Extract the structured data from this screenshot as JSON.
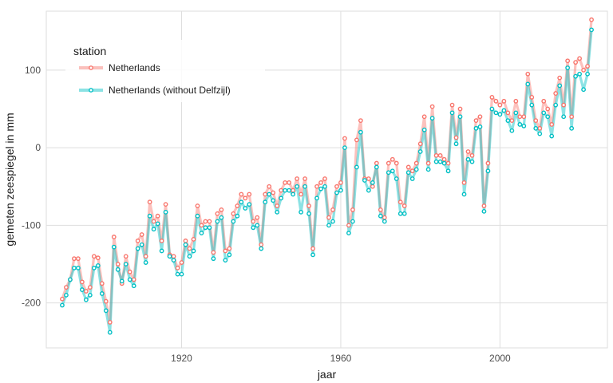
{
  "chart_data": {
    "type": "line",
    "xlabel": "jaar",
    "ylabel": "gemeten zeespiegel in mm",
    "xlim": [
      1886,
      2027
    ],
    "ylim": [
      -258,
      176
    ],
    "x_ticks": [
      1920,
      1960,
      2000
    ],
    "y_ticks": [
      -200,
      -100,
      0,
      100
    ],
    "y_tick_labels": [
      "-200",
      "-100",
      "0",
      "100"
    ],
    "grid": true,
    "legend": {
      "title": "station",
      "placement": "top-left",
      "entries": [
        "Netherlands",
        "Netherlands (without Delfzijl)"
      ]
    },
    "colors": {
      "series_1": "#F8766D",
      "series_2": "#00BFC4",
      "grid": "#DEDEDE",
      "panel_border": "#DEDEDE"
    },
    "x": [
      1890,
      1891,
      1892,
      1893,
      1894,
      1895,
      1896,
      1897,
      1898,
      1899,
      1900,
      1901,
      1902,
      1903,
      1904,
      1905,
      1906,
      1907,
      1908,
      1909,
      1910,
      1911,
      1912,
      1913,
      1914,
      1915,
      1916,
      1917,
      1918,
      1919,
      1920,
      1921,
      1922,
      1923,
      1924,
      1925,
      1926,
      1927,
      1928,
      1929,
      1930,
      1931,
      1932,
      1933,
      1934,
      1935,
      1936,
      1937,
      1938,
      1939,
      1940,
      1941,
      1942,
      1943,
      1944,
      1945,
      1946,
      1947,
      1948,
      1949,
      1950,
      1951,
      1952,
      1953,
      1954,
      1955,
      1956,
      1957,
      1958,
      1959,
      1960,
      1961,
      1962,
      1963,
      1964,
      1965,
      1966,
      1967,
      1968,
      1969,
      1970,
      1971,
      1972,
      1973,
      1974,
      1975,
      1976,
      1977,
      1978,
      1979,
      1980,
      1981,
      1982,
      1983,
      1984,
      1985,
      1986,
      1987,
      1988,
      1989,
      1990,
      1991,
      1992,
      1993,
      1994,
      1995,
      1996,
      1997,
      1998,
      1999,
      2000,
      2001,
      2002,
      2003,
      2004,
      2005,
      2006,
      2007,
      2008,
      2009,
      2010,
      2011,
      2012,
      2013,
      2014,
      2015,
      2016,
      2017,
      2018,
      2019,
      2020,
      2021,
      2022,
      2023
    ],
    "series": [
      {
        "name": "Netherlands",
        "values": [
          -195,
          -180,
          -170,
          -143,
          -143,
          -173,
          -185,
          -180,
          -140,
          -142,
          -175,
          -198,
          -225,
          -115,
          -150,
          -175,
          -140,
          -160,
          -170,
          -120,
          -112,
          -140,
          -70,
          -95,
          -88,
          -120,
          -73,
          -138,
          -140,
          -155,
          -148,
          -120,
          -130,
          -118,
          -75,
          -100,
          -95,
          -95,
          -135,
          -85,
          -80,
          -133,
          -130,
          -85,
          -75,
          -60,
          -65,
          -60,
          -95,
          -90,
          -125,
          -60,
          -50,
          -58,
          -75,
          -55,
          -45,
          -45,
          -55,
          -40,
          -60,
          -40,
          -75,
          -130,
          -50,
          -45,
          -40,
          -90,
          -80,
          -50,
          -45,
          12,
          -100,
          -80,
          10,
          35,
          -40,
          -40,
          -50,
          -20,
          -80,
          -90,
          -20,
          -15,
          -20,
          -70,
          -75,
          -25,
          -30,
          -20,
          5,
          40,
          -20,
          53,
          -10,
          -10,
          -15,
          -20,
          55,
          13,
          50,
          -45,
          -5,
          -10,
          35,
          40,
          -75,
          -20,
          65,
          60,
          55,
          60,
          45,
          35,
          60,
          40,
          40,
          95,
          65,
          35,
          25,
          60,
          50,
          30,
          70,
          90,
          55,
          112,
          40,
          110,
          115,
          100,
          105,
          165
        ]
      },
      {
        "name": "Netherlands (without Delfzijl)",
        "values": [
          -203,
          -190,
          -170,
          -155,
          -155,
          -183,
          -196,
          -190,
          -155,
          -152,
          -188,
          -210,
          -238,
          -128,
          -157,
          -172,
          -150,
          -170,
          -178,
          -130,
          -125,
          -148,
          -88,
          -105,
          -98,
          -133,
          -83,
          -140,
          -145,
          -163,
          -163,
          -125,
          -140,
          -133,
          -88,
          -110,
          -103,
          -103,
          -143,
          -95,
          -90,
          -145,
          -138,
          -95,
          -88,
          -70,
          -78,
          -73,
          -103,
          -100,
          -130,
          -70,
          -60,
          -68,
          -83,
          -65,
          -55,
          -55,
          -60,
          -50,
          -83,
          -50,
          -85,
          -138,
          -65,
          -53,
          -50,
          -100,
          -95,
          -58,
          -55,
          0,
          -110,
          -95,
          -25,
          20,
          -42,
          -55,
          -45,
          -25,
          -88,
          -95,
          -32,
          -30,
          -40,
          -85,
          -85,
          -32,
          -40,
          -28,
          -5,
          23,
          -28,
          38,
          -18,
          -18,
          -20,
          -30,
          45,
          5,
          40,
          -60,
          -15,
          -18,
          25,
          27,
          -82,
          -30,
          50,
          45,
          43,
          48,
          35,
          22,
          45,
          30,
          28,
          82,
          55,
          25,
          18,
          45,
          40,
          15,
          55,
          80,
          40,
          103,
          25,
          92,
          95,
          75,
          95,
          152
        ]
      }
    ]
  }
}
